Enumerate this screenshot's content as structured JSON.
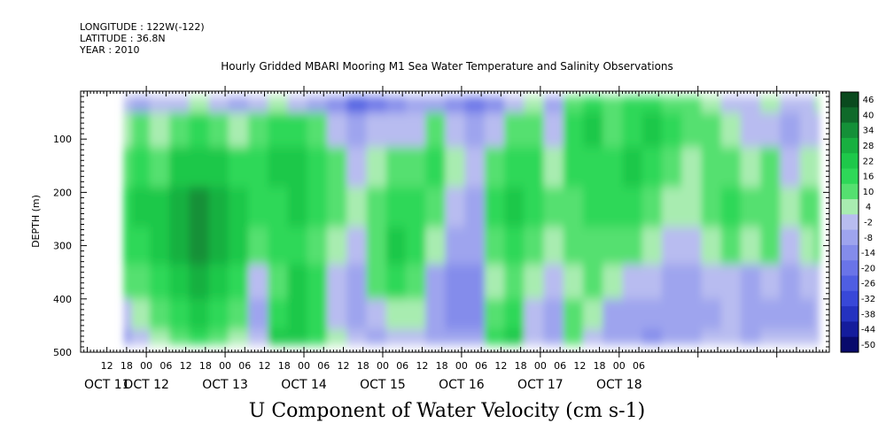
{
  "header": {
    "longitude": "LONGITUDE : 122W(-122)",
    "latitude": "LATITUDE : 36.8N",
    "year": "YEAR : 2010"
  },
  "chart_data": {
    "type": "heatmap",
    "title": "Hourly Gridded MBARI Mooring M1 Sea Water Temperature and Salinity Observations",
    "xlabel": "U Component of Water Velocity (cm s-1)",
    "ylabel": "DEPTH (m)",
    "x_hour_labels": [
      "12",
      "18",
      "00",
      "06",
      "12",
      "18",
      "00",
      "06",
      "12",
      "18",
      "00",
      "06",
      "12",
      "18",
      "00",
      "06",
      "12",
      "18",
      "00",
      "06",
      "12",
      "18",
      "00",
      "06",
      "12",
      "18",
      "00",
      "06"
    ],
    "x_day_labels": [
      "OCT 11",
      "OCT 12",
      "OCT 13",
      "OCT 14",
      "OCT 15",
      "OCT 16",
      "OCT 17",
      "OCT 18"
    ],
    "x_range_hours_from_oct11_00": [
      4,
      232
    ],
    "data_range_hours_from_oct11_00": [
      17,
      229
    ],
    "y_ticks": [
      100,
      200,
      300,
      400,
      500
    ],
    "y_tick_labels": [
      "100",
      "200",
      "300",
      "400",
      "500"
    ],
    "ylim": [
      10,
      500
    ],
    "y_reversed": true,
    "data_depth_range": [
      20,
      485
    ],
    "colorbar": {
      "levels": [
        46,
        40,
        34,
        28,
        22,
        16,
        10,
        4,
        -2,
        -8,
        -14,
        -20,
        -26,
        -32,
        -38,
        -44,
        -50
      ],
      "labels": [
        "46",
        "40",
        "34",
        "28",
        "22",
        "16",
        "10",
        "4",
        "-2",
        "-8",
        "-14",
        "-20",
        "-26",
        "-32",
        "-38",
        "-44",
        "-50"
      ],
      "colors": [
        "#0a4a1e",
        "#0f6a2a",
        "#149038",
        "#18b040",
        "#1ec84a",
        "#2ed858",
        "#55e070",
        "#a8ecb0",
        "#b8bcf0",
        "#9ea4ee",
        "#848ceb",
        "#6a74e8",
        "#4f5ee2",
        "#3848d8",
        "#2432c0",
        "#141c9c",
        "#080a6c"
      ]
    },
    "columns": [
      {
        "t": 17,
        "profile": [
          -6,
          2,
          6,
          12,
          10,
          4,
          -4,
          -12
        ]
      },
      {
        "t": 22,
        "profile": [
          -10,
          4,
          14,
          18,
          14,
          8,
          2,
          -6
        ]
      },
      {
        "t": 28,
        "profile": [
          -8,
          -2,
          8,
          16,
          18,
          12,
          4,
          -2
        ]
      },
      {
        "t": 34,
        "profile": [
          -4,
          6,
          16,
          22,
          24,
          20,
          12,
          4
        ]
      },
      {
        "t": 40,
        "profile": [
          -2,
          10,
          20,
          28,
          30,
          26,
          18,
          10
        ]
      },
      {
        "t": 46,
        "profile": [
          -6,
          8,
          16,
          24,
          26,
          20,
          14,
          8
        ]
      },
      {
        "t": 52,
        "profile": [
          -10,
          2,
          10,
          18,
          20,
          14,
          6,
          0
        ]
      },
      {
        "t": 58,
        "profile": [
          -6,
          6,
          12,
          14,
          6,
          -4,
          -10,
          -8
        ]
      },
      {
        "t": 64,
        "profile": [
          -2,
          10,
          16,
          14,
          10,
          8,
          12,
          16
        ]
      },
      {
        "t": 70,
        "profile": [
          -6,
          12,
          20,
          18,
          14,
          16,
          20,
          18
        ]
      },
      {
        "t": 76,
        "profile": [
          -12,
          6,
          14,
          12,
          8,
          10,
          14,
          10
        ]
      },
      {
        "t": 82,
        "profile": [
          -20,
          -6,
          4,
          6,
          -2,
          -8,
          -4,
          2
        ]
      },
      {
        "t": 88,
        "profile": [
          -28,
          -14,
          -6,
          -2,
          -8,
          -14,
          -12,
          -6
        ]
      },
      {
        "t": 94,
        "profile": [
          -24,
          -8,
          2,
          6,
          8,
          4,
          -4,
          -10
        ]
      },
      {
        "t": 100,
        "profile": [
          -18,
          -4,
          8,
          14,
          16,
          10,
          2,
          -6
        ]
      },
      {
        "t": 106,
        "profile": [
          -14,
          -6,
          4,
          10,
          12,
          6,
          -2,
          -8
        ]
      },
      {
        "t": 112,
        "profile": [
          -12,
          4,
          12,
          8,
          -2,
          -10,
          -14,
          -12
        ]
      },
      {
        "t": 118,
        "profile": [
          -18,
          -8,
          0,
          -6,
          -12,
          -16,
          -18,
          -14
        ]
      },
      {
        "t": 124,
        "profile": [
          -22,
          -12,
          -8,
          -10,
          -14,
          -18,
          -16,
          -10
        ]
      },
      {
        "t": 130,
        "profile": [
          -16,
          -6,
          4,
          12,
          8,
          2,
          6,
          10
        ]
      },
      {
        "t": 136,
        "profile": [
          -6,
          6,
          14,
          18,
          12,
          6,
          12,
          16
        ]
      },
      {
        "t": 142,
        "profile": [
          -2,
          8,
          12,
          10,
          4,
          -2,
          -6,
          -4
        ]
      },
      {
        "t": 148,
        "profile": [
          -12,
          -6,
          0,
          4,
          -2,
          -8,
          -12,
          -10
        ]
      },
      {
        "t": 154,
        "profile": [
          6,
          12,
          10,
          8,
          4,
          2,
          4,
          6
        ]
      },
      {
        "t": 160,
        "profile": [
          12,
          16,
          14,
          12,
          8,
          4,
          -2,
          -6
        ]
      },
      {
        "t": 166,
        "profile": [
          6,
          8,
          10,
          12,
          8,
          -2,
          -10,
          -12
        ]
      },
      {
        "t": 172,
        "profile": [
          10,
          14,
          16,
          12,
          4,
          -6,
          -12,
          -14
        ]
      },
      {
        "t": 178,
        "profile": [
          14,
          18,
          12,
          8,
          0,
          -8,
          -14,
          -16
        ]
      },
      {
        "t": 184,
        "profile": [
          8,
          12,
          6,
          2,
          -4,
          -10,
          -12,
          -10
        ]
      },
      {
        "t": 190,
        "profile": [
          4,
          6,
          2,
          -2,
          -6,
          -10,
          -14,
          -12
        ]
      },
      {
        "t": 196,
        "profile": [
          2,
          4,
          6,
          8,
          2,
          -6,
          -10,
          -8
        ]
      },
      {
        "t": 202,
        "profile": [
          -4,
          -2,
          4,
          10,
          6,
          -4,
          -8,
          -6
        ]
      },
      {
        "t": 208,
        "profile": [
          -8,
          -6,
          2,
          6,
          -2,
          -10,
          -14,
          -10
        ]
      },
      {
        "t": 214,
        "profile": [
          -2,
          -4,
          4,
          8,
          4,
          -6,
          -12,
          -8
        ]
      },
      {
        "t": 220,
        "profile": [
          -6,
          -10,
          -4,
          2,
          -4,
          -10,
          -12,
          -8
        ]
      },
      {
        "t": 226,
        "profile": [
          -4,
          -8,
          -2,
          6,
          2,
          -6,
          -10,
          -6
        ]
      },
      {
        "t": 229,
        "profile": [
          -2,
          -6,
          2,
          8,
          4,
          -4,
          -8,
          -4
        ]
      }
    ],
    "profile_depths": [
      20,
      80,
      150,
      230,
      300,
      370,
      430,
      485
    ]
  }
}
